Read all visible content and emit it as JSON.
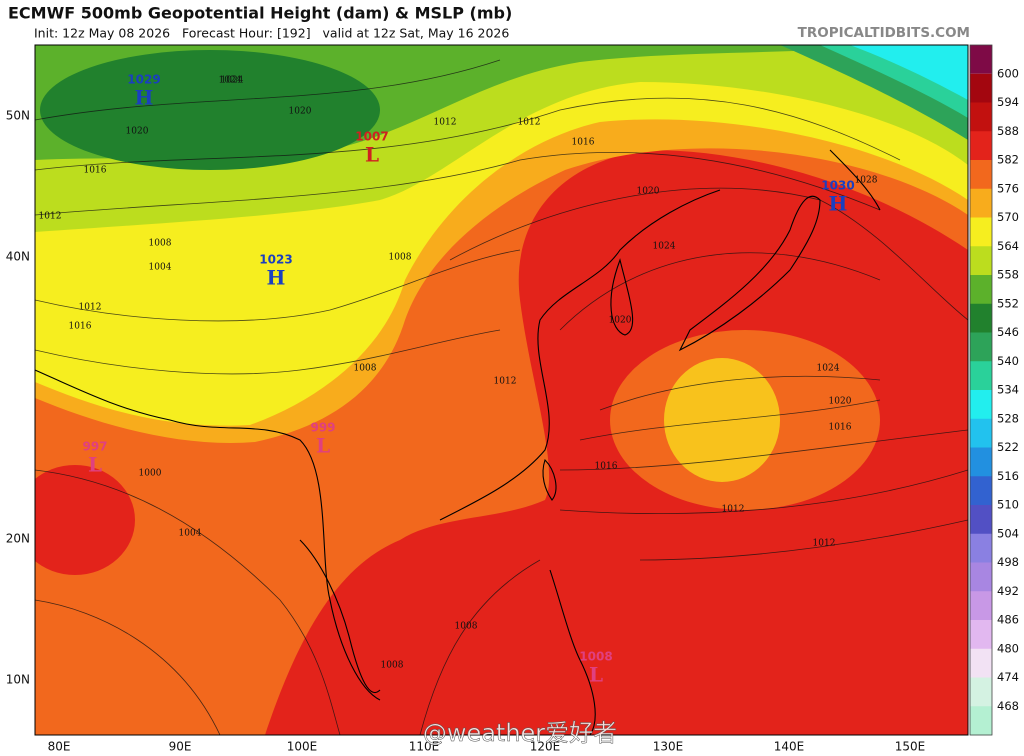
{
  "header": {
    "title": "ECMWF 500mb Geopotential Height (dam) & MSLP (mb)",
    "subtitle": "Init: 12z May 08 2026   Forecast Hour: [192]   valid at 12z Sat, May 16 2026",
    "site": "TROPICALTIDBITS.COM"
  },
  "map": {
    "lon_labels": [
      "80E",
      "90E",
      "100E",
      "110E",
      "120E",
      "130E",
      "140E",
      "150E"
    ],
    "lat_labels": [
      "50N",
      "40N",
      "20N",
      "10N"
    ]
  },
  "centers": [
    {
      "value": "1029",
      "letter": "H",
      "kind": "high"
    },
    {
      "value": "1023",
      "letter": "H",
      "kind": "high"
    },
    {
      "value": "1030",
      "letter": "H",
      "kind": "high"
    },
    {
      "value": "1007",
      "letter": "L",
      "kind": "low"
    },
    {
      "value": "997",
      "letter": "L",
      "kind": "low"
    },
    {
      "value": "999",
      "letter": "L",
      "kind": "low"
    },
    {
      "value": "1008",
      "letter": "L",
      "kind": "low"
    }
  ],
  "isobar_labels": [
    "1024",
    "1020",
    "1016",
    "1012",
    "1008",
    "1012",
    "1016",
    "1008",
    "1004",
    "1012",
    "1016",
    "1020",
    "1024",
    "1020",
    "1024",
    "1020",
    "1016",
    "1016",
    "1012",
    "1012",
    "1012",
    "1008",
    "1004",
    "1000",
    "1008",
    "1008",
    "1028",
    "1020",
    "1024",
    "1012"
  ],
  "colorbar": {
    "levels": [
      {
        "label": "600",
        "color": "#a3060f"
      },
      {
        "label": "594",
        "color": "#c2110f"
      },
      {
        "label": "588",
        "color": "#e3231b"
      },
      {
        "label": "582",
        "color": "#f2681d"
      },
      {
        "label": "576",
        "color": "#f8ac1c"
      },
      {
        "label": "570",
        "color": "#f6ee1f"
      },
      {
        "label": "564",
        "color": "#bcdd1e"
      },
      {
        "label": "558",
        "color": "#5cb12b"
      },
      {
        "label": "552",
        "color": "#21812d"
      },
      {
        "label": "546",
        "color": "#2da359"
      },
      {
        "label": "540",
        "color": "#2ad19a"
      },
      {
        "label": "534",
        "color": "#22eeee"
      },
      {
        "label": "528",
        "color": "#22c2ee"
      },
      {
        "label": "522",
        "color": "#2290e0"
      },
      {
        "label": "516",
        "color": "#3262d0"
      },
      {
        "label": "510",
        "color": "#5250c4"
      },
      {
        "label": "504",
        "color": "#8a80e2"
      },
      {
        "label": "498",
        "color": "#a886e2"
      },
      {
        "label": "492",
        "color": "#c898e6"
      },
      {
        "label": "486",
        "color": "#e2b8f0"
      },
      {
        "label": "480",
        "color": "#f2e2f4"
      },
      {
        "label": "474",
        "color": "#d4f2e2"
      },
      {
        "label": "468",
        "color": "#b4f0d2"
      }
    ],
    "top_color": "#7e0a46"
  },
  "watermark": "@weather爱好者"
}
